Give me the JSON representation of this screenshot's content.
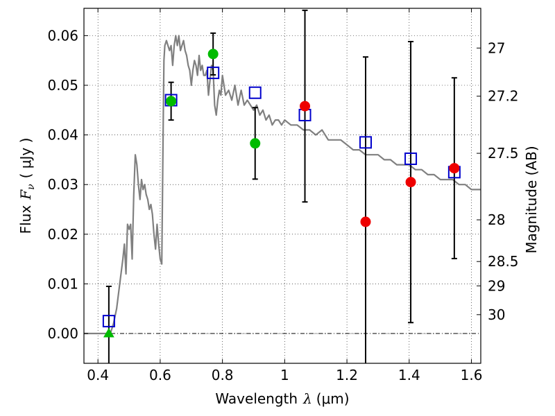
{
  "chart_data": {
    "type": "scatter",
    "xlabel_main": "Wavelength",
    "xlabel_symbol": "λ",
    "xlabel_unit": "(μm)",
    "ylabel_main": "Flux",
    "ylabel_symbol": "F",
    "ylabel_sub": "ν",
    "ylabel_unit": "( μJy )",
    "y2label": "Magnitude (AB)",
    "xlim": [
      0.355,
      1.63
    ],
    "ylim": [
      -0.006,
      0.0655
    ],
    "grid": true,
    "x_ticks": [
      {
        "value": 0.4,
        "label": "0.4"
      },
      {
        "value": 0.6,
        "label": "0.6"
      },
      {
        "value": 0.8,
        "label": "0.8"
      },
      {
        "value": 1.0,
        "label": "1"
      },
      {
        "value": 1.2,
        "label": "1.2"
      },
      {
        "value": 1.4,
        "label": "1.4"
      },
      {
        "value": 1.6,
        "label": "1.6"
      }
    ],
    "y_ticks": [
      {
        "value": 0.0,
        "label": "0.00"
      },
      {
        "value": 0.01,
        "label": "0.01"
      },
      {
        "value": 0.02,
        "label": "0.02"
      },
      {
        "value": 0.03,
        "label": "0.03"
      },
      {
        "value": 0.04,
        "label": "0.04"
      },
      {
        "value": 0.05,
        "label": "0.05"
      },
      {
        "value": 0.06,
        "label": "0.06"
      }
    ],
    "y2_ticks": [
      {
        "label": "27",
        "at_flux": 0.0575
      },
      {
        "label": "27.2",
        "at_flux": 0.0478
      },
      {
        "label": "27.5",
        "at_flux": 0.0363
      },
      {
        "label": "28",
        "at_flux": 0.0229
      },
      {
        "label": "28.5",
        "at_flux": 0.0145
      },
      {
        "label": "29",
        "at_flux": 0.0096
      },
      {
        "label": "30",
        "at_flux": 0.0038
      }
    ],
    "zero_line_y": 0.0,
    "model_spectrum": {
      "color": "#808080",
      "x": [
        0.355,
        0.4,
        0.44,
        0.45,
        0.46,
        0.47,
        0.48,
        0.485,
        0.49,
        0.495,
        0.5,
        0.505,
        0.51,
        0.515,
        0.52,
        0.525,
        0.53,
        0.535,
        0.54,
        0.545,
        0.55,
        0.555,
        0.56,
        0.565,
        0.57,
        0.575,
        0.58,
        0.585,
        0.59,
        0.595,
        0.6,
        0.605,
        0.61,
        0.612,
        0.615,
        0.62,
        0.625,
        0.63,
        0.635,
        0.64,
        0.645,
        0.65,
        0.655,
        0.66,
        0.665,
        0.67,
        0.675,
        0.68,
        0.685,
        0.69,
        0.695,
        0.7,
        0.705,
        0.71,
        0.715,
        0.72,
        0.725,
        0.73,
        0.735,
        0.74,
        0.745,
        0.75,
        0.755,
        0.76,
        0.765,
        0.77,
        0.775,
        0.78,
        0.785,
        0.79,
        0.795,
        0.8,
        0.81,
        0.82,
        0.83,
        0.84,
        0.85,
        0.86,
        0.87,
        0.88,
        0.89,
        0.9,
        0.91,
        0.92,
        0.93,
        0.94,
        0.95,
        0.96,
        0.97,
        0.98,
        0.99,
        1.0,
        1.02,
        1.04,
        1.06,
        1.08,
        1.1,
        1.12,
        1.14,
        1.16,
        1.18,
        1.2,
        1.22,
        1.24,
        1.26,
        1.28,
        1.3,
        1.32,
        1.34,
        1.36,
        1.38,
        1.4,
        1.42,
        1.44,
        1.46,
        1.48,
        1.5,
        1.52,
        1.54,
        1.56,
        1.58,
        1.6,
        1.62,
        1.63
      ],
      "y": [
        0.0,
        0.0,
        0.0,
        0.002,
        0.005,
        0.01,
        0.015,
        0.018,
        0.012,
        0.022,
        0.021,
        0.022,
        0.015,
        0.028,
        0.036,
        0.034,
        0.03,
        0.027,
        0.031,
        0.029,
        0.03,
        0.028,
        0.027,
        0.025,
        0.026,
        0.024,
        0.02,
        0.017,
        0.022,
        0.018,
        0.015,
        0.014,
        0.044,
        0.055,
        0.058,
        0.059,
        0.058,
        0.057,
        0.058,
        0.054,
        0.058,
        0.06,
        0.058,
        0.06,
        0.057,
        0.058,
        0.059,
        0.057,
        0.056,
        0.054,
        0.053,
        0.05,
        0.053,
        0.055,
        0.054,
        0.052,
        0.056,
        0.053,
        0.054,
        0.052,
        0.052,
        0.053,
        0.048,
        0.051,
        0.054,
        0.053,
        0.046,
        0.044,
        0.047,
        0.049,
        0.048,
        0.052,
        0.048,
        0.049,
        0.047,
        0.05,
        0.046,
        0.049,
        0.046,
        0.047,
        0.046,
        0.045,
        0.046,
        0.044,
        0.045,
        0.043,
        0.044,
        0.042,
        0.043,
        0.043,
        0.042,
        0.043,
        0.042,
        0.042,
        0.041,
        0.041,
        0.04,
        0.041,
        0.039,
        0.039,
        0.039,
        0.038,
        0.037,
        0.037,
        0.036,
        0.036,
        0.036,
        0.035,
        0.035,
        0.034,
        0.034,
        0.034,
        0.033,
        0.033,
        0.032,
        0.032,
        0.031,
        0.031,
        0.031,
        0.03,
        0.03,
        0.029,
        0.029,
        0.029
      ]
    },
    "model_points": {
      "color": "#0000cc",
      "x": [
        0.435,
        0.635,
        0.77,
        0.905,
        1.065,
        1.26,
        1.405,
        1.545
      ],
      "y": [
        0.0025,
        0.047,
        0.0525,
        0.0485,
        0.044,
        0.0385,
        0.0352,
        0.0325
      ]
    },
    "observed_points": [
      {
        "x": 0.435,
        "y": 0.0,
        "yerr": 0.0095,
        "color": "#00bb00",
        "marker": "triangle"
      },
      {
        "x": 0.635,
        "y": 0.0468,
        "yerr": 0.0038,
        "color": "#00bb00",
        "marker": "circle"
      },
      {
        "x": 0.77,
        "y": 0.0563,
        "yerr": 0.0042,
        "color": "#00bb00",
        "marker": "circle"
      },
      {
        "x": 0.905,
        "y": 0.0383,
        "yerr": 0.0072,
        "color": "#00bb00",
        "marker": "circle"
      },
      {
        "x": 1.065,
        "y": 0.0458,
        "yerr": 0.0193,
        "color": "#ee0000",
        "marker": "circle"
      },
      {
        "x": 1.26,
        "y": 0.0225,
        "yerr": 0.0332,
        "color": "#ee0000",
        "marker": "circle"
      },
      {
        "x": 1.405,
        "y": 0.0305,
        "yerr": 0.0283,
        "color": "#ee0000",
        "marker": "circle"
      },
      {
        "x": 1.545,
        "y": 0.0333,
        "yerr": 0.0182,
        "color": "#ee0000",
        "marker": "circle"
      }
    ]
  }
}
